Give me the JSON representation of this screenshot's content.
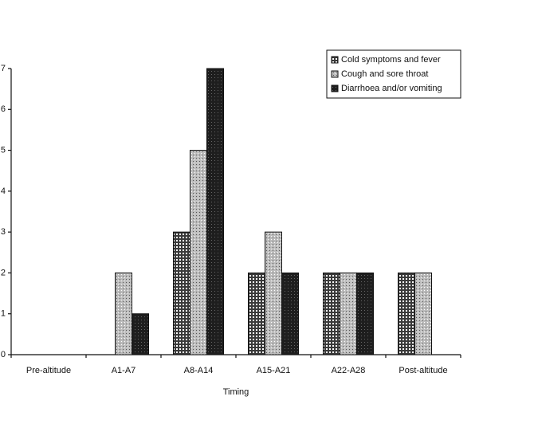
{
  "chart_data": {
    "type": "bar",
    "x_label": "Timing",
    "categories": [
      "Pre-altitude",
      "A1-A7",
      "A8-A14",
      "A15-A21",
      "A22-A28",
      "Post-altitude"
    ],
    "series": [
      {
        "name": "Cold symptoms and fever",
        "color": "#3a3a3a",
        "values": [
          0,
          0,
          3,
          2,
          2,
          2
        ]
      },
      {
        "name": "Cough and sore throat",
        "color": "#bdbdbd",
        "values": [
          0,
          2,
          5,
          3,
          2,
          2
        ]
      },
      {
        "name": "Diarrhoea and/or vomiting",
        "color": "#1e1e1e",
        "values": [
          0,
          1,
          7,
          2,
          2,
          0
        ]
      }
    ],
    "ylim": [
      0,
      7
    ],
    "yticks": [
      0,
      1,
      2,
      3,
      4,
      5,
      6,
      7
    ],
    "legend": "upper right"
  }
}
